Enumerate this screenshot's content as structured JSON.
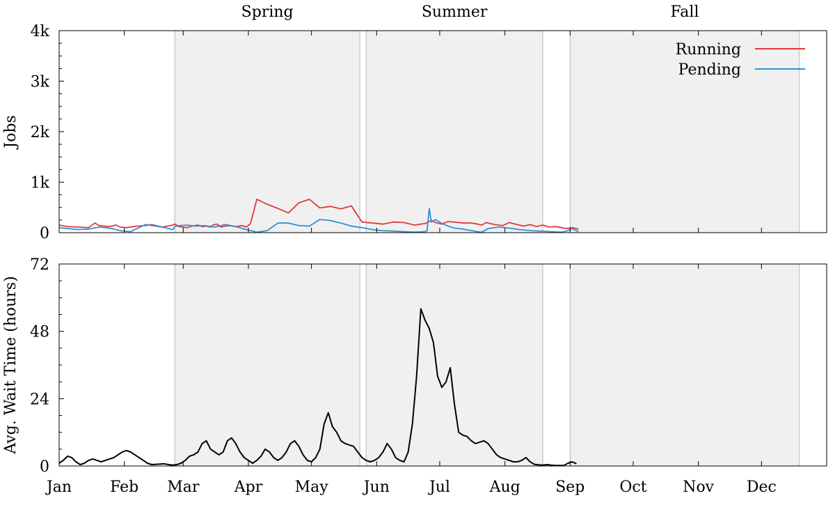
{
  "chart_data": [
    {
      "type": "line",
      "ylabel": "Jobs",
      "ylim": [
        0,
        4000
      ],
      "y_ticks": [
        0,
        1000,
        2000,
        3000,
        4000
      ],
      "y_tick_labels": [
        "0",
        "1k",
        "2k",
        "3k",
        "4k"
      ],
      "x_unit": "day of year",
      "xlim": [
        1,
        366
      ],
      "legend": {
        "position": "top-right"
      },
      "series": [
        {
          "name": "Running",
          "color": "#e03a3a",
          "x": [
            1,
            5,
            10,
            15,
            18,
            20,
            25,
            28,
            30,
            33,
            38,
            42,
            45,
            50,
            55,
            56,
            58,
            62,
            64,
            67,
            69,
            71,
            73,
            74,
            76,
            78,
            80,
            82,
            85,
            88,
            90,
            92,
            95,
            100,
            105,
            110,
            115,
            120,
            125,
            130,
            135,
            140,
            145,
            150,
            155,
            160,
            165,
            170,
            175,
            178,
            180,
            183,
            186,
            189,
            193,
            197,
            200,
            202,
            204,
            206,
            208,
            212,
            215,
            218,
            222,
            225,
            228,
            231,
            234,
            237,
            240,
            242,
            245,
            248
          ],
          "y": [
            150,
            120,
            110,
            100,
            190,
            140,
            120,
            150,
            110,
            100,
            130,
            140,
            160,
            110,
            150,
            170,
            120,
            100,
            130,
            150,
            120,
            130,
            110,
            150,
            170,
            110,
            130,
            140,
            120,
            140,
            110,
            180,
            660,
            560,
            480,
            390,
            590,
            660,
            490,
            520,
            470,
            530,
            210,
            190,
            170,
            210,
            200,
            150,
            180,
            240,
            200,
            170,
            220,
            210,
            190,
            190,
            170,
            150,
            200,
            180,
            160,
            140,
            200,
            170,
            130,
            160,
            120,
            150,
            110,
            120,
            100,
            80,
            100,
            70
          ]
        },
        {
          "name": "Pending",
          "color": "#2e8fd8",
          "x": [
            1,
            5,
            10,
            15,
            20,
            25,
            30,
            35,
            40,
            42,
            45,
            50,
            55,
            56,
            58,
            62,
            66,
            70,
            75,
            80,
            85,
            90,
            95,
            100,
            105,
            110,
            115,
            120,
            125,
            130,
            135,
            140,
            145,
            150,
            155,
            160,
            165,
            170,
            175,
            176,
            177,
            178,
            180,
            183,
            186,
            189,
            193,
            197,
            200,
            202,
            205,
            210,
            215,
            220,
            225,
            230,
            235,
            240,
            243,
            245,
            248
          ],
          "y": [
            100,
            80,
            60,
            70,
            110,
            90,
            40,
            20,
            120,
            160,
            140,
            110,
            60,
            120,
            140,
            150,
            130,
            140,
            110,
            160,
            120,
            60,
            10,
            40,
            190,
            190,
            140,
            130,
            260,
            240,
            190,
            130,
            100,
            60,
            40,
            30,
            20,
            10,
            20,
            40,
            480,
            210,
            260,
            180,
            130,
            90,
            70,
            40,
            20,
            10,
            80,
            110,
            90,
            60,
            40,
            30,
            20,
            10,
            40,
            80,
            20
          ]
        }
      ]
    },
    {
      "type": "line",
      "ylabel": "Avg. Wait Time (hours)",
      "ylim": [
        0,
        72
      ],
      "y_ticks": [
        0,
        24,
        48,
        72
      ],
      "y_tick_labels": [
        "0",
        "24",
        "48",
        "72"
      ],
      "x_unit": "day of year",
      "xlim": [
        1,
        366
      ],
      "series": [
        {
          "name": "",
          "color": "#000000",
          "x": [
            1,
            3,
            5,
            7,
            9,
            11,
            13,
            15,
            17,
            19,
            21,
            23,
            25,
            27,
            29,
            31,
            33,
            35,
            37,
            39,
            41,
            43,
            45,
            47,
            49,
            51,
            53,
            55,
            57,
            59,
            61,
            63,
            65,
            67,
            69,
            71,
            73,
            75,
            77,
            79,
            81,
            83,
            85,
            87,
            89,
            91,
            93,
            95,
            97,
            99,
            101,
            103,
            105,
            107,
            109,
            111,
            113,
            115,
            117,
            119,
            121,
            123,
            125,
            127,
            129,
            131,
            133,
            135,
            137,
            139,
            141,
            143,
            145,
            147,
            149,
            151,
            153,
            155,
            157,
            159,
            161,
            163,
            165,
            167,
            169,
            171,
            173,
            175,
            177,
            179,
            181,
            183,
            185,
            187,
            189,
            191,
            193,
            195,
            197,
            199,
            201,
            203,
            205,
            207,
            209,
            211,
            213,
            215,
            217,
            219,
            221,
            223,
            225,
            227,
            229,
            231,
            233,
            235,
            237,
            239,
            241,
            243,
            245,
            247
          ],
          "y": [
            1,
            2,
            3.5,
            3,
            1.5,
            0.5,
            1,
            2,
            2.5,
            2,
            1.5,
            2,
            2.5,
            3,
            4,
            5,
            5.5,
            5,
            4,
            3,
            2,
            1,
            0.5,
            0.6,
            0.7,
            0.8,
            0.5,
            0.3,
            0.5,
            1,
            2,
            3.5,
            4,
            5,
            8,
            9,
            6,
            5,
            4,
            5,
            9,
            10,
            8,
            5,
            3,
            2,
            1,
            2,
            3.5,
            6,
            5,
            3,
            2,
            3,
            5,
            8,
            9,
            7,
            4,
            2,
            1.5,
            3,
            6,
            15,
            19,
            14,
            12,
            9,
            8,
            7.5,
            7,
            5,
            3,
            2,
            1.5,
            2,
            3,
            5,
            8,
            6,
            3,
            2,
            1.5,
            5,
            15,
            32,
            56,
            52,
            49,
            44,
            32,
            28,
            30,
            35,
            22,
            12,
            11,
            10.5,
            9,
            8,
            8.5,
            9,
            8,
            6,
            4,
            3,
            2.5,
            2,
            1.5,
            1.5,
            2,
            3,
            1.5,
            0.6,
            0.4,
            0.3,
            0.5,
            0.3,
            0.2,
            0.2,
            0.2,
            1,
            1.5,
            0.8
          ]
        }
      ]
    }
  ],
  "seasons": [
    {
      "label": "Spring",
      "start": 56,
      "end": 144
    },
    {
      "label": "Summer",
      "start": 147,
      "end": 231
    },
    {
      "label": "Fall",
      "start": 244,
      "end": 353
    }
  ],
  "months": [
    {
      "label": "Jan",
      "day": 1
    },
    {
      "label": "Feb",
      "day": 32
    },
    {
      "label": "Mar",
      "day": 60
    },
    {
      "label": "Apr",
      "day": 91
    },
    {
      "label": "May",
      "day": 121
    },
    {
      "label": "Jun",
      "day": 152
    },
    {
      "label": "Jul",
      "day": 182
    },
    {
      "label": "Aug",
      "day": 213
    },
    {
      "label": "Sep",
      "day": 244
    },
    {
      "label": "Oct",
      "day": 274
    },
    {
      "label": "Nov",
      "day": 305
    },
    {
      "label": "Dec",
      "day": 335
    }
  ],
  "colors": {
    "season_fill": "#f0f0f0",
    "season_edge": "#b8b8b8"
  }
}
